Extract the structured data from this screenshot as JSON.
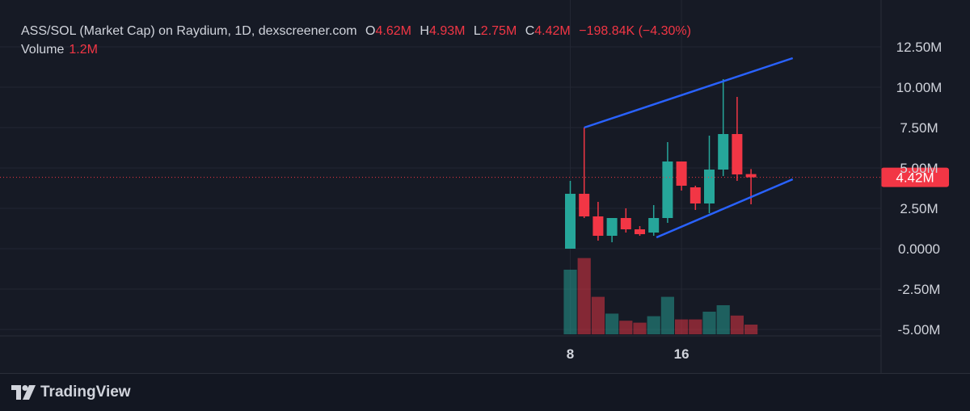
{
  "legend": {
    "title": "ASS/SOL (Market Cap) on Raydium, 1D, dexscreener.com",
    "open_label": "O",
    "open_value": "4.62M",
    "high_label": "H",
    "high_value": "4.93M",
    "low_label": "L",
    "low_value": "2.75M",
    "close_label": "C",
    "close_value": "4.42M",
    "change": "−198.84K (−4.30%)"
  },
  "volume": {
    "label": "Volume",
    "value": "1.2M"
  },
  "brand": {
    "name": "TradingView"
  },
  "colors": {
    "up": "#26a69a",
    "down": "#f23645",
    "trend": "#2962ff",
    "background": "#161a25"
  },
  "chart_data": {
    "type": "candlestick",
    "y_axis": {
      "ylim": [
        -5.4,
        13.2
      ],
      "ticks": [
        12.5,
        10,
        7.5,
        5,
        2.5,
        0,
        -2.5,
        -5
      ],
      "tick_labels": [
        "12.50M",
        "10.00M",
        "7.50M",
        "5.00M",
        "2.50M",
        "0.0000",
        "-2.50M",
        "-5.00M"
      ],
      "unit": "M"
    },
    "x_axis": {
      "day_range": [
        0,
        24
      ],
      "ticks": [
        {
          "day": 8,
          "label": "8"
        },
        {
          "day": 16,
          "label": "16"
        }
      ]
    },
    "last_price": {
      "value": 4.42,
      "label": "4.42M"
    },
    "candles": [
      {
        "day": 8,
        "open": 0.0,
        "high": 4.2,
        "low": 0.0,
        "close": 3.4
      },
      {
        "day": 9,
        "open": 3.4,
        "high": 7.5,
        "low": 1.9,
        "close": 2.0
      },
      {
        "day": 10,
        "open": 2.0,
        "high": 2.9,
        "low": 0.5,
        "close": 0.8
      },
      {
        "day": 11,
        "open": 0.8,
        "high": 1.9,
        "low": 0.4,
        "close": 1.9
      },
      {
        "day": 12,
        "open": 1.9,
        "high": 2.5,
        "low": 1.0,
        "close": 1.2
      },
      {
        "day": 13,
        "open": 1.2,
        "high": 1.4,
        "low": 0.8,
        "close": 0.9
      },
      {
        "day": 14,
        "open": 1.0,
        "high": 2.7,
        "low": 0.8,
        "close": 1.9
      },
      {
        "day": 15,
        "open": 1.9,
        "high": 6.6,
        "low": 1.6,
        "close": 5.4
      },
      {
        "day": 16,
        "open": 5.4,
        "high": 5.4,
        "low": 3.6,
        "close": 3.9
      },
      {
        "day": 17,
        "open": 3.8,
        "high": 3.9,
        "low": 2.4,
        "close": 2.8
      },
      {
        "day": 18,
        "open": 2.8,
        "high": 7.0,
        "low": 2.2,
        "close": 4.9
      },
      {
        "day": 19,
        "open": 4.9,
        "high": 10.5,
        "low": 4.5,
        "close": 7.1
      },
      {
        "day": 20,
        "open": 7.1,
        "high": 9.4,
        "low": 4.2,
        "close": 4.6
      },
      {
        "day": 21,
        "open": 4.62,
        "high": 4.93,
        "low": 2.75,
        "close": 4.42
      }
    ],
    "volume_bars": [
      {
        "day": 8,
        "value": 100,
        "direction": "up"
      },
      {
        "day": 9,
        "value": 118,
        "direction": "down"
      },
      {
        "day": 10,
        "value": 58,
        "direction": "down"
      },
      {
        "day": 11,
        "value": 32,
        "direction": "up"
      },
      {
        "day": 12,
        "value": 21,
        "direction": "down"
      },
      {
        "day": 13,
        "value": 18,
        "direction": "down"
      },
      {
        "day": 14,
        "value": 28,
        "direction": "up"
      },
      {
        "day": 15,
        "value": 58,
        "direction": "up"
      },
      {
        "day": 16,
        "value": 23,
        "direction": "down"
      },
      {
        "day": 17,
        "value": 23,
        "direction": "down"
      },
      {
        "day": 18,
        "value": 35,
        "direction": "up"
      },
      {
        "day": 19,
        "value": 45,
        "direction": "up"
      },
      {
        "day": 20,
        "value": 29,
        "direction": "down"
      },
      {
        "day": 21,
        "value": 15,
        "direction": "down"
      }
    ],
    "trendlines": [
      {
        "from": {
          "day": 9.0,
          "value": 7.5
        },
        "to": {
          "day": 24.0,
          "value": 11.8
        }
      },
      {
        "from": {
          "day": 14.2,
          "value": 0.7
        },
        "to": {
          "day": 24.0,
          "value": 4.3
        }
      }
    ]
  }
}
